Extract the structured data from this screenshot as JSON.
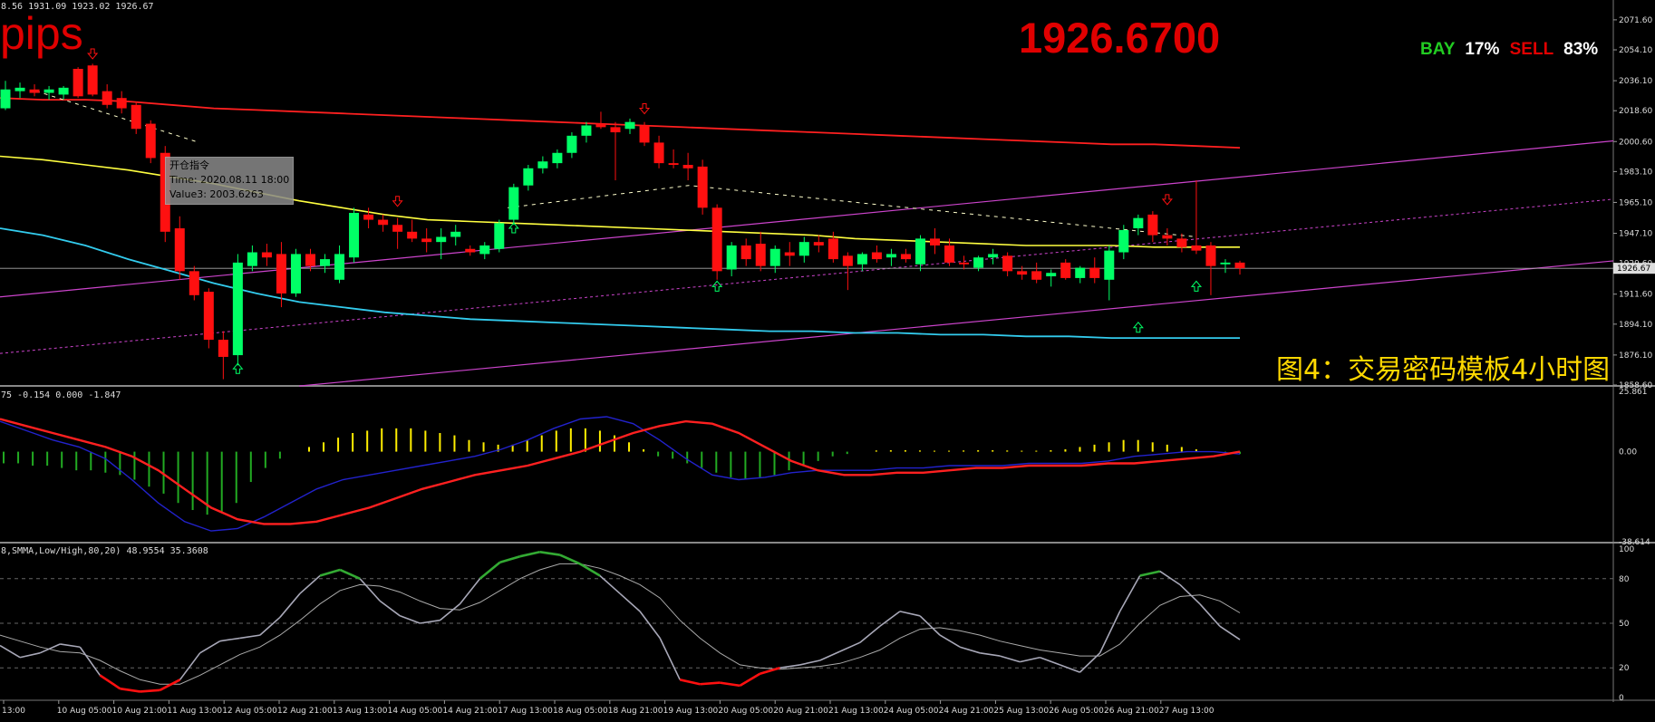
{
  "header": {
    "ohlc_text": "8.56 1931.09 1923.02 1926.67",
    "pips_label": "pips",
    "current_price": "1926.6700",
    "bay_label": "BAY",
    "bay_pct": "17%",
    "sell_label": "SELL",
    "sell_pct": "83%",
    "caption": "图4：交易密码模板4小时图",
    "tooltip": {
      "line1": "开仓指令",
      "line2": "Time: 2020.08.11 18:00",
      "line3": "Value3: 2003.6263"
    }
  },
  "macd_header": "75 -0.154 0.000 -1.847",
  "stoch_header": "8,SMMA,Low/High,80,20) 48.9554 35.3608",
  "colors": {
    "bull": "#00ff66",
    "bear": "#ff1010",
    "upper_ma": "#ff2020",
    "mid_ma": "#ffff40",
    "lower_ma": "#33ccee",
    "channel": "#cc44cc",
    "histogram_pos": "#ffee00",
    "histogram_neg": "#22aa22",
    "macd_signal": "#ff2020",
    "macd_main": "#2222cc"
  },
  "chart_data": [
    {
      "type": "candlestick",
      "title": "",
      "y_ticks": [
        "2071.60",
        "2054.10",
        "2036.10",
        "2018.60",
        "2000.60",
        "1983.10",
        "1965.10",
        "1947.10",
        "1929.60",
        "1911.60",
        "1894.10",
        "1876.10",
        "1858.60"
      ],
      "ylim": [
        1858.6,
        2080
      ],
      "current_price_label": "1926.67",
      "candles": [
        {
          "o": 2020,
          "h": 2036,
          "l": 2019,
          "c": 2031
        },
        {
          "o": 2030,
          "h": 2035,
          "l": 2026,
          "c": 2032
        },
        {
          "o": 2031,
          "h": 2034,
          "l": 2027,
          "c": 2029
        },
        {
          "o": 2029,
          "h": 2033,
          "l": 2025,
          "c": 2031
        },
        {
          "o": 2028,
          "h": 2033,
          "l": 2025,
          "c": 2032
        },
        {
          "o": 2043,
          "h": 2044,
          "l": 2026,
          "c": 2027
        },
        {
          "o": 2045,
          "h": 2046,
          "l": 2027,
          "c": 2028
        },
        {
          "o": 2030,
          "h": 2034,
          "l": 2020,
          "c": 2022
        },
        {
          "o": 2026,
          "h": 2030,
          "l": 2017,
          "c": 2020
        },
        {
          "o": 2022,
          "h": 2024,
          "l": 2005,
          "c": 2008
        },
        {
          "o": 2011,
          "h": 2013,
          "l": 1988,
          "c": 1991
        },
        {
          "o": 1994,
          "h": 1998,
          "l": 1942,
          "c": 1948
        },
        {
          "o": 1950,
          "h": 1957,
          "l": 1920,
          "c": 1925
        },
        {
          "o": 1925,
          "h": 1928,
          "l": 1908,
          "c": 1911
        },
        {
          "o": 1913,
          "h": 1915,
          "l": 1880,
          "c": 1885
        },
        {
          "o": 1885,
          "h": 1890,
          "l": 1862,
          "c": 1875
        },
        {
          "o": 1876,
          "h": 1935,
          "l": 1870,
          "c": 1930
        },
        {
          "o": 1928,
          "h": 1940,
          "l": 1925,
          "c": 1936
        },
        {
          "o": 1936,
          "h": 1941,
          "l": 1928,
          "c": 1933
        },
        {
          "o": 1935,
          "h": 1942,
          "l": 1904,
          "c": 1912
        },
        {
          "o": 1912,
          "h": 1938,
          "l": 1910,
          "c": 1935
        },
        {
          "o": 1935,
          "h": 1938,
          "l": 1925,
          "c": 1928
        },
        {
          "o": 1928,
          "h": 1935,
          "l": 1924,
          "c": 1932
        },
        {
          "o": 1920,
          "h": 1940,
          "l": 1918,
          "c": 1935
        },
        {
          "o": 1933,
          "h": 1962,
          "l": 1930,
          "c": 1959
        },
        {
          "o": 1958,
          "h": 1962,
          "l": 1950,
          "c": 1955
        },
        {
          "o": 1955,
          "h": 1958,
          "l": 1948,
          "c": 1952
        },
        {
          "o": 1952,
          "h": 1956,
          "l": 1938,
          "c": 1948
        },
        {
          "o": 1948,
          "h": 1955,
          "l": 1942,
          "c": 1944
        },
        {
          "o": 1944,
          "h": 1950,
          "l": 1936,
          "c": 1942
        },
        {
          "o": 1942,
          "h": 1950,
          "l": 1932,
          "c": 1945
        },
        {
          "o": 1945,
          "h": 1952,
          "l": 1940,
          "c": 1948
        },
        {
          "o": 1938,
          "h": 1940,
          "l": 1934,
          "c": 1936
        },
        {
          "o": 1935,
          "h": 1942,
          "l": 1932,
          "c": 1940
        },
        {
          "o": 1938,
          "h": 1955,
          "l": 1936,
          "c": 1953
        },
        {
          "o": 1955,
          "h": 1976,
          "l": 1952,
          "c": 1974
        },
        {
          "o": 1975,
          "h": 1987,
          "l": 1972,
          "c": 1985
        },
        {
          "o": 1985,
          "h": 1992,
          "l": 1982,
          "c": 1989
        },
        {
          "o": 1988,
          "h": 1996,
          "l": 1985,
          "c": 1994
        },
        {
          "o": 1994,
          "h": 2006,
          "l": 1991,
          "c": 2004
        },
        {
          "o": 2004,
          "h": 2012,
          "l": 2000,
          "c": 2010
        },
        {
          "o": 2011,
          "h": 2018,
          "l": 2008,
          "c": 2009
        },
        {
          "o": 2009,
          "h": 2012,
          "l": 1978,
          "c": 2006
        },
        {
          "o": 2008,
          "h": 2014,
          "l": 2005,
          "c": 2012
        },
        {
          "o": 2010,
          "h": 2012,
          "l": 1998,
          "c": 2000
        },
        {
          "o": 2000,
          "h": 2004,
          "l": 1985,
          "c": 1988
        },
        {
          "o": 1988,
          "h": 1996,
          "l": 1985,
          "c": 1987
        },
        {
          "o": 1987,
          "h": 1994,
          "l": 1978,
          "c": 1985
        },
        {
          "o": 1986,
          "h": 1990,
          "l": 1958,
          "c": 1962
        },
        {
          "o": 1962,
          "h": 1964,
          "l": 1920,
          "c": 1925
        },
        {
          "o": 1926,
          "h": 1942,
          "l": 1922,
          "c": 1940
        },
        {
          "o": 1940,
          "h": 1944,
          "l": 1928,
          "c": 1932
        },
        {
          "o": 1941,
          "h": 1948,
          "l": 1925,
          "c": 1928
        },
        {
          "o": 1928,
          "h": 1940,
          "l": 1924,
          "c": 1938
        },
        {
          "o": 1936,
          "h": 1942,
          "l": 1928,
          "c": 1934
        },
        {
          "o": 1934,
          "h": 1945,
          "l": 1930,
          "c": 1942
        },
        {
          "o": 1942,
          "h": 1946,
          "l": 1936,
          "c": 1940
        },
        {
          "o": 1944,
          "h": 1948,
          "l": 1930,
          "c": 1932
        },
        {
          "o": 1934,
          "h": 1936,
          "l": 1914,
          "c": 1928
        },
        {
          "o": 1929,
          "h": 1936,
          "l": 1925,
          "c": 1935
        },
        {
          "o": 1936,
          "h": 1940,
          "l": 1930,
          "c": 1932
        },
        {
          "o": 1933,
          "h": 1938,
          "l": 1928,
          "c": 1935
        },
        {
          "o": 1935,
          "h": 1938,
          "l": 1930,
          "c": 1932
        },
        {
          "o": 1929,
          "h": 1946,
          "l": 1925,
          "c": 1944
        },
        {
          "o": 1944,
          "h": 1950,
          "l": 1935,
          "c": 1940
        },
        {
          "o": 1940,
          "h": 1944,
          "l": 1928,
          "c": 1930
        },
        {
          "o": 1930,
          "h": 1934,
          "l": 1926,
          "c": 1929
        },
        {
          "o": 1927,
          "h": 1934,
          "l": 1925,
          "c": 1933
        },
        {
          "o": 1933,
          "h": 1938,
          "l": 1929,
          "c": 1935
        },
        {
          "o": 1934,
          "h": 1936,
          "l": 1922,
          "c": 1925
        },
        {
          "o": 1925,
          "h": 1928,
          "l": 1920,
          "c": 1923
        },
        {
          "o": 1925,
          "h": 1930,
          "l": 1918,
          "c": 1920
        },
        {
          "o": 1922,
          "h": 1926,
          "l": 1916,
          "c": 1924
        },
        {
          "o": 1930,
          "h": 1932,
          "l": 1920,
          "c": 1921
        },
        {
          "o": 1921,
          "h": 1928,
          "l": 1918,
          "c": 1927
        },
        {
          "o": 1927,
          "h": 1933,
          "l": 1918,
          "c": 1921
        },
        {
          "o": 1920,
          "h": 1940,
          "l": 1908,
          "c": 1937
        },
        {
          "o": 1936,
          "h": 1952,
          "l": 1932,
          "c": 1949
        },
        {
          "o": 1950,
          "h": 1958,
          "l": 1946,
          "c": 1956
        },
        {
          "o": 1958,
          "h": 1960,
          "l": 1942,
          "c": 1946
        },
        {
          "o": 1946,
          "h": 1950,
          "l": 1940,
          "c": 1944
        },
        {
          "o": 1944,
          "h": 1947,
          "l": 1936,
          "c": 1939
        },
        {
          "o": 1940,
          "h": 1978,
          "l": 1935,
          "c": 1937
        },
        {
          "o": 1940,
          "h": 1942,
          "l": 1911,
          "c": 1928
        },
        {
          "o": 1929,
          "h": 1932,
          "l": 1924,
          "c": 1930
        },
        {
          "o": 1930,
          "h": 1931.09,
          "l": 1923.02,
          "c": 1926.67
        }
      ],
      "ma_upper": [
        2026,
        2025,
        2025,
        2024,
        2022,
        2020,
        2019,
        2018,
        2017,
        2016,
        2015,
        2014,
        2013,
        2012,
        2011,
        2010,
        2009,
        2008,
        2007,
        2006,
        2005,
        2004,
        2003,
        2002,
        2001,
        2000,
        1999,
        1999,
        1998,
        1997
      ],
      "ma_mid": [
        1992,
        1990,
        1987,
        1984,
        1980,
        1976,
        1971,
        1966,
        1962,
        1958,
        1955,
        1954,
        1953,
        1952,
        1951,
        1950,
        1949,
        1948,
        1947,
        1946,
        1944,
        1943,
        1942,
        1941,
        1940,
        1940,
        1940,
        1939,
        1939,
        1939
      ],
      "ma_lower": [
        1950,
        1946,
        1940,
        1932,
        1925,
        1918,
        1912,
        1907,
        1904,
        1901,
        1899,
        1897,
        1896,
        1895,
        1894,
        1893,
        1892,
        1891,
        1890,
        1890,
        1889,
        1889,
        1888,
        1888,
        1887,
        1887,
        1886,
        1886,
        1886,
        1886
      ],
      "signal_arrows": [
        {
          "i": 6,
          "dir": "down",
          "price": 2052
        },
        {
          "i": 16,
          "dir": "up",
          "price": 1868
        },
        {
          "i": 27,
          "dir": "down",
          "price": 1966
        },
        {
          "i": 35,
          "dir": "up",
          "price": 1950
        },
        {
          "i": 44,
          "dir": "down",
          "price": 2020
        },
        {
          "i": 49,
          "dir": "up",
          "price": 1916
        },
        {
          "i": 78,
          "dir": "up",
          "price": 1892
        },
        {
          "i": 82,
          "dir": "up",
          "price": 1916
        },
        {
          "i": 80,
          "dir": "down",
          "price": 1967
        }
      ]
    },
    {
      "type": "macd",
      "y_ticks": [
        "25.861",
        "0.00",
        "-38.614"
      ],
      "ylim": [
        -38.614,
        25.861
      ],
      "histogram": [
        -5,
        -5,
        -6,
        -6,
        -7,
        -8,
        -8,
        -9,
        -10,
        -12,
        -15,
        -18,
        -22,
        -25,
        -27,
        -26,
        -22,
        -13,
        -7,
        -3,
        0,
        2,
        4,
        6,
        8,
        9,
        10,
        10,
        10,
        9,
        8,
        7,
        5,
        4,
        3,
        3,
        5,
        7,
        9,
        10,
        10,
        9,
        7,
        4,
        1,
        -2,
        -3,
        -5,
        -7,
        -9,
        -11,
        -12,
        -11,
        -10,
        -8,
        -6,
        -4,
        -2,
        -1,
        0,
        0.5,
        0.6,
        0.6,
        0.5,
        0.4,
        0.4,
        0.5,
        0.6,
        0.6,
        0.5,
        0.4,
        0.4,
        0.6,
        1,
        2,
        3,
        4,
        5,
        5,
        4,
        3,
        2,
        1,
        0.2,
        -0.5,
        -1
      ],
      "signal": [
        14,
        11,
        8,
        5,
        2,
        -2,
        -8,
        -16,
        -24,
        -29,
        -31,
        -31,
        -30,
        -27,
        -24,
        -20,
        -16,
        -13,
        -10,
        -8,
        -6,
        -3,
        0,
        4,
        8,
        11,
        13,
        12,
        8,
        2,
        -4,
        -8,
        -10,
        -10,
        -9,
        -9,
        -8,
        -7,
        -7,
        -6,
        -6,
        -6,
        -5,
        -5,
        -4,
        -3,
        -2,
        0
      ],
      "main": [
        13,
        9,
        5,
        2,
        -3,
        -12,
        -22,
        -30,
        -34,
        -33,
        -28,
        -22,
        -16,
        -12,
        -10,
        -8,
        -6,
        -4,
        -2,
        1,
        5,
        10,
        14,
        15,
        12,
        5,
        -3,
        -10,
        -12,
        -11,
        -9,
        -8,
        -8,
        -8,
        -7,
        -7,
        -6,
        -6,
        -6,
        -5,
        -5,
        -5,
        -4,
        -2,
        -1,
        0,
        0,
        -1
      ]
    },
    {
      "type": "stochastic",
      "y_ticks": [
        "100",
        "80",
        "50",
        "20",
        "0"
      ],
      "ylim": [
        0,
        100
      ],
      "k": [
        35,
        27,
        30,
        36,
        34,
        15,
        6,
        4,
        5,
        12,
        30,
        38,
        40,
        42,
        54,
        70,
        82,
        86,
        80,
        65,
        55,
        50,
        52,
        63,
        80,
        91,
        95,
        98,
        96,
        90,
        82,
        70,
        58,
        40,
        12,
        9,
        10,
        8,
        16,
        20,
        22,
        25,
        31,
        37,
        48,
        58,
        55,
        42,
        34,
        30,
        28,
        24,
        27,
        22,
        17,
        30,
        58,
        82,
        85,
        76,
        63,
        48,
        39
      ],
      "d": [
        42,
        38,
        34,
        31,
        30,
        25,
        18,
        12,
        9,
        9,
        15,
        22,
        29,
        34,
        42,
        52,
        63,
        72,
        76,
        75,
        71,
        65,
        60,
        59,
        64,
        72,
        80,
        86,
        90,
        90,
        87,
        82,
        76,
        67,
        52,
        40,
        30,
        22,
        20,
        19,
        20,
        21,
        23,
        27,
        32,
        40,
        46,
        47,
        45,
        42,
        38,
        35,
        32,
        30,
        28,
        28,
        36,
        50,
        62,
        68,
        69,
        65,
        57
      ]
    }
  ],
  "x_axis_labels": [
    "13:00",
    "10 Aug 05:00",
    "10 Aug 21:00",
    "11 Aug 13:00",
    "12 Aug 05:00",
    "12 Aug 21:00",
    "13 Aug 13:00",
    "14 Aug 05:00",
    "14 Aug 21:00",
    "17 Aug 13:00",
    "18 Aug 05:00",
    "18 Aug 21:00",
    "19 Aug 13:00",
    "20 Aug 05:00",
    "20 Aug 21:00",
    "21 Aug 13:00",
    "24 Aug 05:00",
    "24 Aug 21:00",
    "25 Aug 13:00",
    "26 Aug 05:00",
    "26 Aug 21:00",
    "27 Aug 13:00"
  ]
}
